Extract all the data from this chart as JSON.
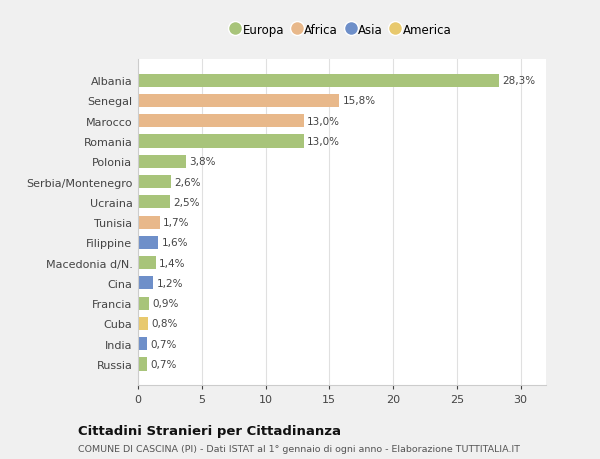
{
  "countries": [
    "Albania",
    "Senegal",
    "Marocco",
    "Romania",
    "Polonia",
    "Serbia/Montenegro",
    "Ucraina",
    "Tunisia",
    "Filippine",
    "Macedonia d/N.",
    "Cina",
    "Francia",
    "Cuba",
    "India",
    "Russia"
  ],
  "values": [
    28.3,
    15.8,
    13.0,
    13.0,
    3.8,
    2.6,
    2.5,
    1.7,
    1.6,
    1.4,
    1.2,
    0.9,
    0.8,
    0.7,
    0.7
  ],
  "labels": [
    "28,3%",
    "15,8%",
    "13,0%",
    "13,0%",
    "3,8%",
    "2,6%",
    "2,5%",
    "1,7%",
    "1,6%",
    "1,4%",
    "1,2%",
    "0,9%",
    "0,8%",
    "0,7%",
    "0,7%"
  ],
  "colors": [
    "#a8c47a",
    "#e8b88a",
    "#e8b88a",
    "#a8c47a",
    "#a8c47a",
    "#a8c47a",
    "#a8c47a",
    "#e8b88a",
    "#6e8fc9",
    "#a8c47a",
    "#6e8fc9",
    "#a8c47a",
    "#e8c96e",
    "#6e8fc9",
    "#a8c47a"
  ],
  "legend_labels": [
    "Europa",
    "Africa",
    "Asia",
    "America"
  ],
  "legend_colors": [
    "#a8c47a",
    "#e8b88a",
    "#6e8fc9",
    "#e8c96e"
  ],
  "title": "Cittadini Stranieri per Cittadinanza",
  "subtitle": "COMUNE DI CASCINA (PI) - Dati ISTAT al 1° gennaio di ogni anno - Elaborazione TUTTITALIA.IT",
  "xlim": [
    0,
    32
  ],
  "xticks": [
    0,
    5,
    10,
    15,
    20,
    25,
    30
  ],
  "fig_bg": "#f0f0f0",
  "plot_bg": "#ffffff"
}
